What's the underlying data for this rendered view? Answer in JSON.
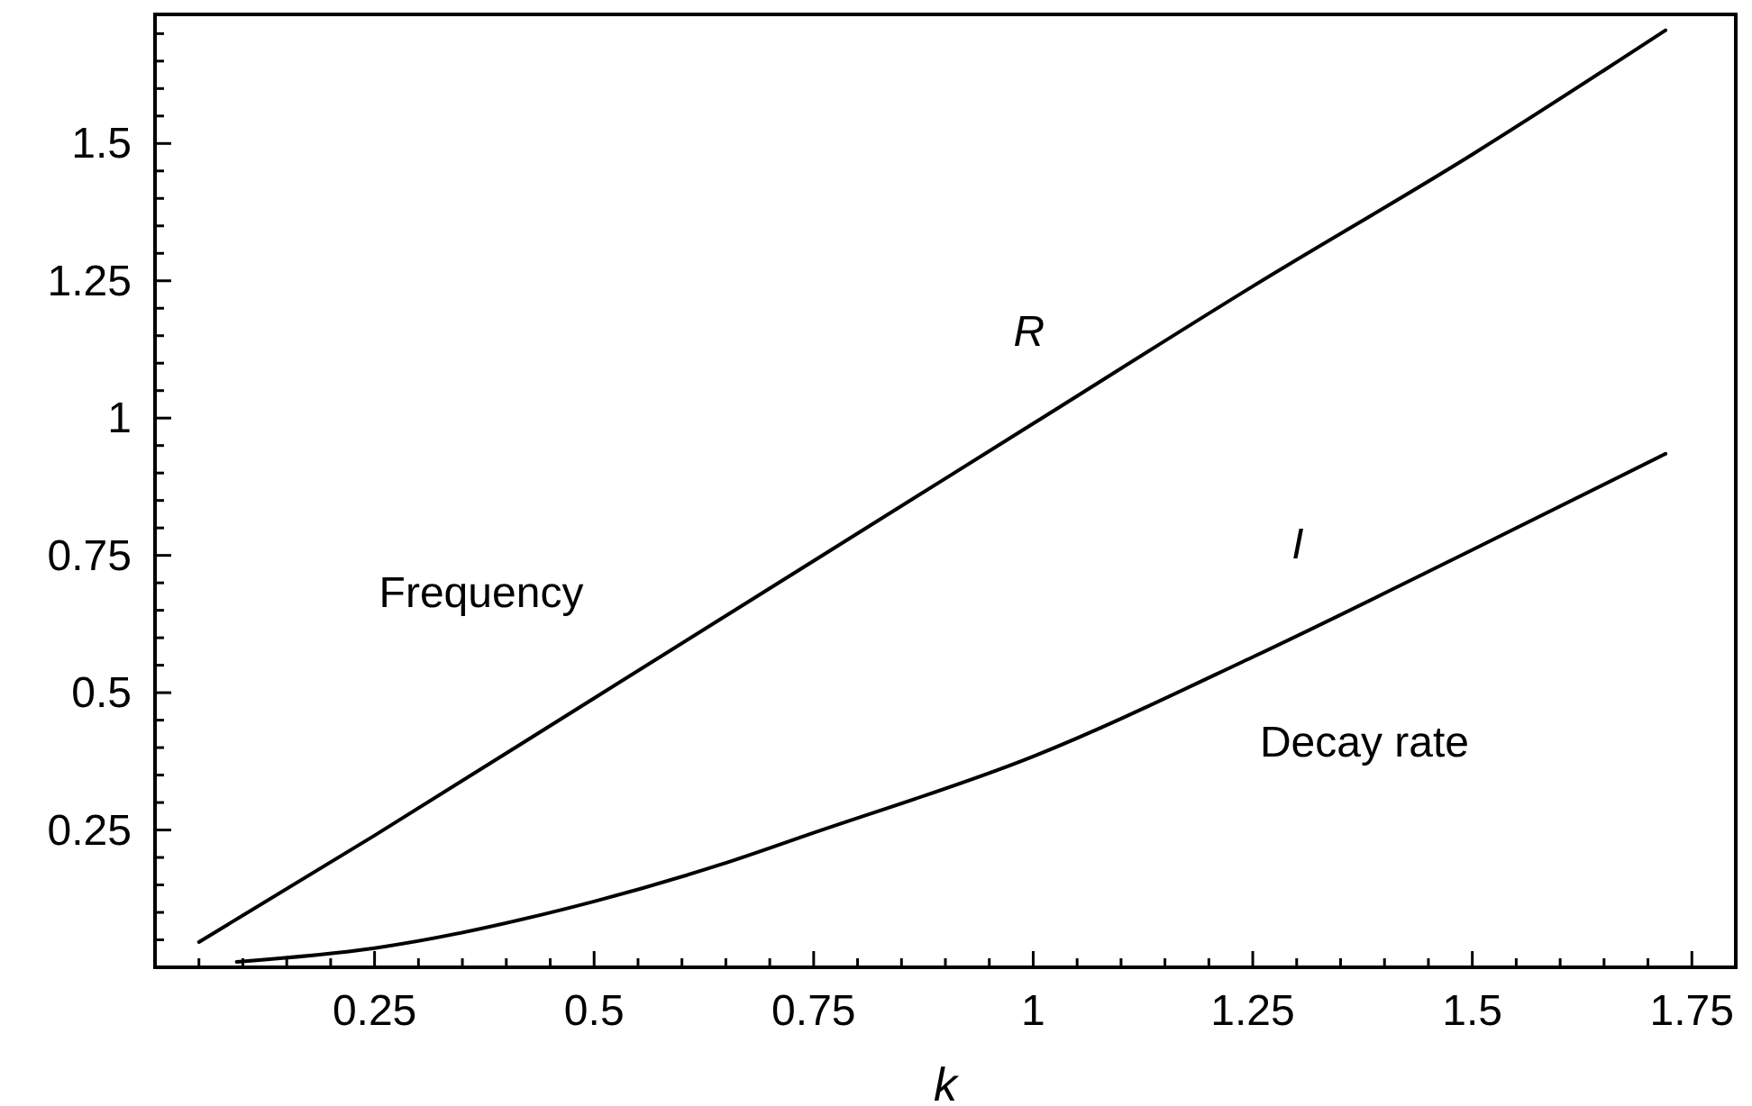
{
  "chart_data": {
    "type": "line",
    "xlabel": "k",
    "xlim": [
      0,
      1.8
    ],
    "ylim": [
      0,
      1.735
    ],
    "xticks": [
      {
        "value": 0.05,
        "label": null
      },
      {
        "value": 0.1,
        "label": null
      },
      {
        "value": 0.15,
        "label": null
      },
      {
        "value": 0.2,
        "label": null
      },
      0.25,
      {
        "value": 0.3,
        "label": null
      },
      {
        "value": 0.35,
        "label": null
      },
      {
        "value": 0.4,
        "label": null
      },
      {
        "value": 0.45,
        "label": null
      },
      0.5,
      {
        "value": 0.55,
        "label": null
      },
      {
        "value": 0.6,
        "label": null
      },
      {
        "value": 0.65,
        "label": null
      },
      {
        "value": 0.7,
        "label": null
      },
      0.75,
      {
        "value": 0.8,
        "label": null
      },
      {
        "value": 0.85,
        "label": null
      },
      {
        "value": 0.9,
        "label": null
      },
      {
        "value": 0.95,
        "label": null
      },
      1,
      {
        "value": 1.05,
        "label": null
      },
      {
        "value": 1.1,
        "label": null
      },
      {
        "value": 1.15,
        "label": null
      },
      {
        "value": 1.2,
        "label": null
      },
      1.25,
      {
        "value": 1.3,
        "label": null
      },
      {
        "value": 1.35,
        "label": null
      },
      {
        "value": 1.4,
        "label": null
      },
      {
        "value": 1.45,
        "label": null
      },
      1.5,
      {
        "value": 1.55,
        "label": null
      },
      {
        "value": 1.6,
        "label": null
      },
      {
        "value": 1.65,
        "label": null
      },
      {
        "value": 1.7,
        "label": null
      },
      1.75
    ],
    "yticks": [
      {
        "value": 0.05,
        "label": null
      },
      {
        "value": 0.1,
        "label": null
      },
      {
        "value": 0.15,
        "label": null
      },
      {
        "value": 0.2,
        "label": null
      },
      0.25,
      {
        "value": 0.3,
        "label": null
      },
      {
        "value": 0.35,
        "label": null
      },
      {
        "value": 0.4,
        "label": null
      },
      {
        "value": 0.45,
        "label": null
      },
      0.5,
      {
        "value": 0.55,
        "label": null
      },
      {
        "value": 0.6,
        "label": null
      },
      {
        "value": 0.65,
        "label": null
      },
      {
        "value": 0.7,
        "label": null
      },
      0.75,
      {
        "value": 0.8,
        "label": null
      },
      {
        "value": 0.85,
        "label": null
      },
      {
        "value": 0.9,
        "label": null
      },
      {
        "value": 0.95,
        "label": null
      },
      1,
      {
        "value": 1.05,
        "label": null
      },
      {
        "value": 1.1,
        "label": null
      },
      {
        "value": 1.15,
        "label": null
      },
      {
        "value": 1.2,
        "label": null
      },
      1.25,
      {
        "value": 1.3,
        "label": null
      },
      {
        "value": 1.35,
        "label": null
      },
      {
        "value": 1.4,
        "label": null
      },
      {
        "value": 1.45,
        "label": null
      },
      1.5,
      {
        "value": 1.55,
        "label": null
      },
      {
        "value": 1.6,
        "label": null
      },
      {
        "value": 1.65,
        "label": null
      },
      {
        "value": 1.7,
        "label": null
      }
    ],
    "series": [
      {
        "name": "R",
        "color": "#000000",
        "x": [
          0.05,
          0.25,
          0.5,
          0.75,
          1,
          1.25,
          1.5,
          1.72
        ],
        "values": [
          0.046,
          0.24,
          0.49,
          0.74,
          0.99,
          1.24,
          1.48,
          1.706
        ]
      },
      {
        "name": "I",
        "color": "#000000",
        "x": [
          0.093,
          0.25,
          0.5,
          0.644,
          0.75,
          1,
          1.25,
          1.5,
          1.72
        ],
        "values": [
          0.01,
          0.035,
          0.12,
          0.187,
          0.245,
          0.384,
          0.565,
          0.76,
          0.935
        ]
      }
    ],
    "annotations": [
      "Frequency",
      "Decay rate"
    ],
    "grid": false,
    "marker": "none",
    "line_style": "solid"
  }
}
